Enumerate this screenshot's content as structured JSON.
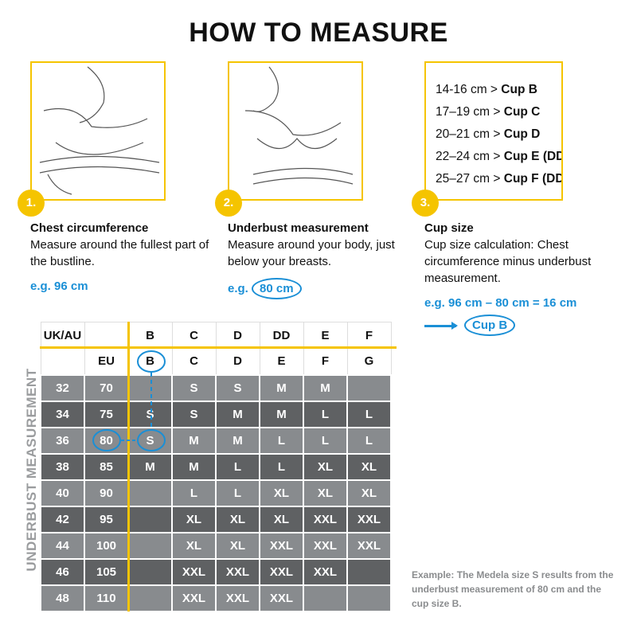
{
  "title": "HOW TO MEASURE",
  "steps": [
    {
      "num": "1.",
      "heading": "Chest circumference",
      "text": "Measure around the fullest part of the bustline.",
      "example": "e.g. 96 cm"
    },
    {
      "num": "2.",
      "heading": "Underbust measurement",
      "text": "Measure around your body, just below your breasts.",
      "example_prefix": "e.g.",
      "example": "80 cm"
    },
    {
      "num": "3.",
      "heading": "Cup size",
      "text": "Cup size calculation: Chest circumference minus underbust measurement.",
      "example": "e.g. 96 cm – 80 cm = 16 cm",
      "result": "Cup B"
    }
  ],
  "cup_table": [
    {
      "range": "14-16 cm >",
      "cup": "Cup B"
    },
    {
      "range": "17–19 cm >",
      "cup": "Cup C"
    },
    {
      "range": "20–21 cm >",
      "cup": "Cup D"
    },
    {
      "range": "22–24 cm >",
      "cup": "Cup E (DD)"
    },
    {
      "range": "25–27 cm >",
      "cup": "Cup F (DDD)"
    }
  ],
  "size_table": {
    "vertical_label": "UNDERBUST MEASUREMENT",
    "header_uk": [
      "UK/AU",
      "",
      "B",
      "C",
      "D",
      "DD",
      "E",
      "F"
    ],
    "header_eu": [
      "",
      "EU",
      "B",
      "C",
      "D",
      "E",
      "F",
      "G"
    ],
    "rows": [
      [
        "32",
        "70",
        "",
        "S",
        "S",
        "M",
        "M",
        ""
      ],
      [
        "34",
        "75",
        "S",
        "S",
        "M",
        "M",
        "L",
        "L"
      ],
      [
        "36",
        "80",
        "S",
        "M",
        "M",
        "L",
        "L",
        "L"
      ],
      [
        "38",
        "85",
        "M",
        "M",
        "L",
        "L",
        "XL",
        "XL"
      ],
      [
        "40",
        "90",
        "",
        "L",
        "L",
        "XL",
        "XL",
        "XL"
      ],
      [
        "42",
        "95",
        "",
        "XL",
        "XL",
        "XL",
        "XXL",
        "XXL"
      ],
      [
        "44",
        "100",
        "",
        "XL",
        "XL",
        "XXL",
        "XXL",
        "XXL"
      ],
      [
        "46",
        "105",
        "",
        "XXL",
        "XXL",
        "XXL",
        "XXL",
        ""
      ],
      [
        "48",
        "110",
        "",
        "XXL",
        "XXL",
        "XXL",
        "",
        ""
      ]
    ]
  },
  "note": "Example: The Medela size S results from the underbust measurement of 80 cm and the cup size B.",
  "colors": {
    "accent": "#f5c400",
    "highlight": "#1a8fd6",
    "row_light": "#888b8e",
    "row_dark": "#5f6163"
  }
}
